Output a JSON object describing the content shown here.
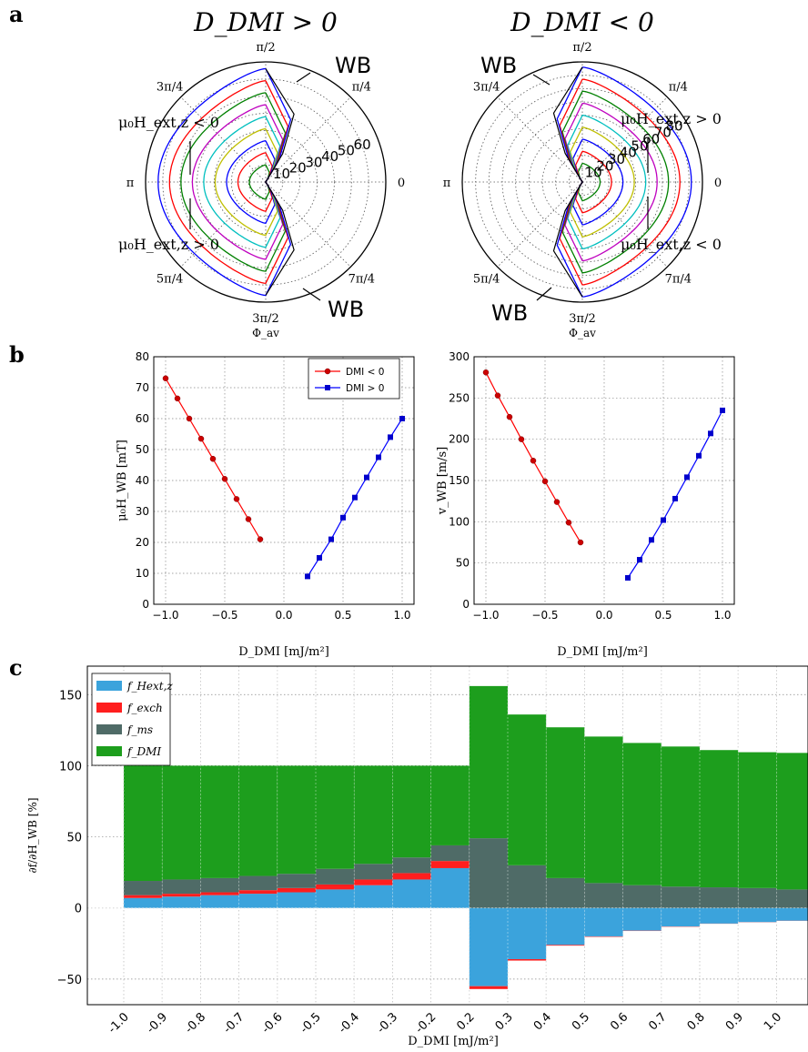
{
  "panels": {
    "a": "a",
    "b": "b",
    "c": "c"
  },
  "chart_data": [
    {
      "type": "polar",
      "panel": "a",
      "title": "D_DMI > 0",
      "angle_labels": [
        "π/2",
        "π/4",
        "0",
        "7π/4",
        "3π/2",
        "5π/4",
        "π",
        "3π/4"
      ],
      "radial_ticks": [
        10,
        20,
        30,
        40,
        50,
        60
      ],
      "radial_max": 70,
      "axis_label": "Φ_av",
      "annotations": {
        "wb_top": "WB",
        "wb_bottom": "WB",
        "field_upper": "μ₀H_ext,z < 0",
        "field_lower": "μ₀H_ext,z > 0"
      },
      "curve_colors": [
        "#008000",
        "#ff0000",
        "#0000ff",
        "#bfbf00",
        "#00bfbf",
        "#bf00bf",
        "#008000",
        "#ff0000",
        "#0000ff"
      ],
      "curve_radii": [
        10,
        17,
        24,
        31,
        38,
        45,
        52,
        59,
        66
      ],
      "orientation": "right-open"
    },
    {
      "type": "polar",
      "panel": "a",
      "title": "D_DMI < 0",
      "angle_labels": [
        "π/2",
        "π/4",
        "0",
        "7π/4",
        "3π/2",
        "5π/4",
        "π",
        "3π/4"
      ],
      "radial_ticks": [
        10,
        20,
        30,
        40,
        50,
        60,
        70,
        80
      ],
      "radial_max": 90,
      "axis_label": "Φ_av",
      "annotations": {
        "wb_top": "WB",
        "wb_bottom": "WB",
        "field_upper": "μ₀H_ext,z > 0",
        "field_lower": "μ₀H_ext,z < 0"
      },
      "curve_colors": [
        "#008000",
        "#ff0000",
        "#0000ff",
        "#bfbf00",
        "#00bfbf",
        "#bf00bf",
        "#008000",
        "#ff0000",
        "#0000ff"
      ],
      "curve_radii": [
        14,
        23,
        32,
        41,
        50,
        59,
        68,
        77,
        86
      ],
      "orientation": "left-open"
    },
    {
      "type": "line",
      "panel": "b",
      "xlabel": "D_DMI [mJ/m²]",
      "ylabel": "μ₀H_WB [mT]",
      "xlim": [
        -1.1,
        1.1
      ],
      "ylim": [
        0,
        80
      ],
      "xticks": [
        "−1.0",
        "−0.5",
        "0.0",
        "0.5",
        "1.0"
      ],
      "yticks": [
        0,
        10,
        20,
        30,
        40,
        50,
        60,
        70,
        80
      ],
      "legend": "top-right",
      "series": [
        {
          "name": "DMI < 0",
          "color": "#ff0000",
          "marker": "circle",
          "x": [
            -1.0,
            -0.9,
            -0.8,
            -0.7,
            -0.6,
            -0.5,
            -0.4,
            -0.3,
            -0.2
          ],
          "y": [
            73.0,
            66.5,
            60.0,
            53.5,
            47.0,
            40.5,
            34.0,
            27.5,
            21.0
          ]
        },
        {
          "name": "DMI > 0",
          "color": "#0000ff",
          "marker": "square",
          "x": [
            0.2,
            0.3,
            0.4,
            0.5,
            0.6,
            0.7,
            0.8,
            0.9,
            1.0
          ],
          "y": [
            9.0,
            15.0,
            21.0,
            28.0,
            34.5,
            41.0,
            47.5,
            54.0,
            60.0
          ]
        }
      ]
    },
    {
      "type": "line",
      "panel": "b",
      "xlabel": "D_DMI [mJ/m²]",
      "ylabel": "v_WB [m/s]",
      "xlim": [
        -1.1,
        1.1
      ],
      "ylim": [
        0,
        300
      ],
      "xticks": [
        "−1.0",
        "−0.5",
        "0.0",
        "0.5",
        "1.0"
      ],
      "yticks": [
        0,
        50,
        100,
        150,
        200,
        250,
        300
      ],
      "series": [
        {
          "name": "DMI < 0",
          "color": "#ff0000",
          "marker": "circle",
          "x": [
            -1.0,
            -0.9,
            -0.8,
            -0.7,
            -0.6,
            -0.5,
            -0.4,
            -0.3,
            -0.2
          ],
          "y": [
            281,
            253,
            227,
            200,
            174,
            149,
            124,
            99,
            75
          ]
        },
        {
          "name": "DMI > 0",
          "color": "#0000ff",
          "marker": "square",
          "x": [
            0.2,
            0.3,
            0.4,
            0.5,
            0.6,
            0.7,
            0.8,
            0.9,
            1.0
          ],
          "y": [
            32,
            54,
            78,
            102,
            128,
            154,
            180,
            207,
            235
          ]
        }
      ]
    },
    {
      "type": "bar",
      "stacked": true,
      "panel": "c",
      "xlabel": "D_DMI [mJ/m²]",
      "ylabel": "∂f/∂H_WB [%]",
      "ylim": [
        -68,
        170
      ],
      "yticks": [
        -50,
        0,
        50,
        100,
        150
      ],
      "categories": [
        "-1.0",
        "-0.9",
        "-0.8",
        "-0.7",
        "-0.6",
        "-0.5",
        "-0.4",
        "-0.3",
        "-0.2",
        "0.2",
        "0.3",
        "0.4",
        "0.5",
        "0.6",
        "0.7",
        "0.8",
        "0.9",
        "1.0"
      ],
      "legend": "top-left",
      "series": [
        {
          "name": "f_Hext,z",
          "color": "#3ba3dc",
          "values": [
            7,
            8,
            9,
            10,
            11,
            13,
            16,
            20,
            28,
            -55,
            -36,
            -26,
            -20,
            -16,
            -13,
            -11,
            -10,
            -9
          ]
        },
        {
          "name": "f_exch",
          "color": "#ff1e1e",
          "values": [
            2,
            2,
            2,
            2.5,
            3,
            3.5,
            4,
            4.5,
            5,
            -2,
            -1,
            -0.5,
            -0.3,
            -0.2,
            -0.2,
            -0.1,
            -0.1,
            -0.1
          ]
        },
        {
          "name": "f_ms",
          "color": "#4f6b67",
          "values": [
            10,
            10,
            10,
            10,
            10,
            11,
            11,
            11,
            11,
            49,
            30,
            21,
            17.5,
            16,
            15,
            14.5,
            14,
            13
          ]
        },
        {
          "name": "f_DMI",
          "color": "#1d9e1d",
          "values": [
            81,
            80,
            79,
            77.5,
            76,
            72.5,
            69,
            64.5,
            56,
            107,
            106,
            106,
            103,
            100,
            98.5,
            96.5,
            95.5,
            96
          ]
        }
      ]
    }
  ]
}
